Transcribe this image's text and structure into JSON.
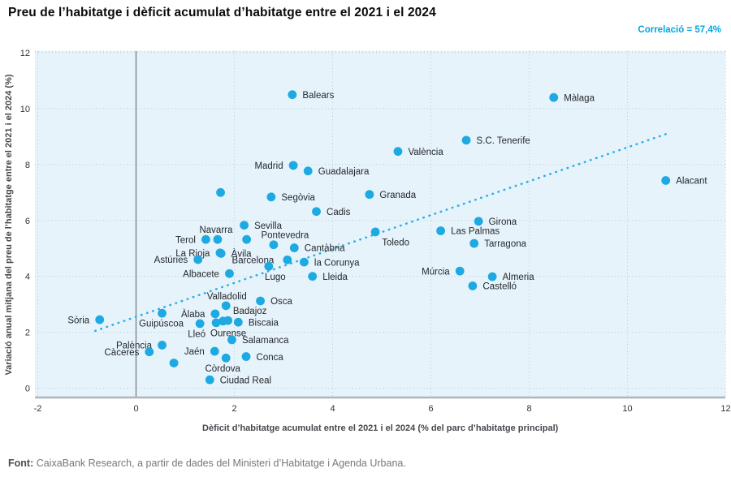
{
  "header": {
    "title": "Preu de l’habitatge i dèficit acumulat d’habitatge entre el 2021 i el 2024",
    "correlation": "Correlació = 57,4%"
  },
  "footer": {
    "source_label": "Font:",
    "source_text": " CaixaBank Research, a partir de dades del Ministeri d’Habitatge i Agenda Urbana."
  },
  "colors": {
    "dot": "#1da9e2",
    "trend": "#2ab1e8",
    "plot_bg": "#e7f3fb",
    "grid": "#b6c9d6",
    "zero_line": "#6b7680",
    "axis_line": "#adb6bc",
    "tick_text": "#2f3337",
    "label_text": "#24282c",
    "axis_title": "#44484c",
    "correlation": "#00a5e0"
  },
  "chart_data": {
    "type": "scatter",
    "title": "Preu de l’habitatge i dèficit acumulat d’habitatge entre el 2021 i el 2024",
    "xlabel": "Dèficit d’habitatge acumulat entre el 2021 i el 2024 (% del parc d’habitatge principal)",
    "ylabel": "Variació anual mitjana del preu de l’habitatge entre el 2021 i el 2024 (%)",
    "xlim": [
      -2.06,
      12.0
    ],
    "ylim": [
      -0.33,
      12.06
    ],
    "x_ticks": [
      -2,
      0,
      2,
      4,
      6,
      8,
      10,
      12
    ],
    "y_ticks": [
      0,
      2,
      4,
      6,
      8,
      10,
      12
    ],
    "grid": true,
    "correlation_pct": "57,4%",
    "trend": {
      "x1": -0.83,
      "y1": 2.05,
      "x2": 10.8,
      "y2": 9.1
    },
    "points": [
      {
        "name": "Balears",
        "x": 3.18,
        "y": 10.5,
        "label_pos": "right",
        "label_dx": 0
      },
      {
        "name": "Màlaga",
        "x": 8.5,
        "y": 10.4,
        "label_pos": "right",
        "label_dx": 0
      },
      {
        "name": "S.C. Tenerife",
        "x": 6.72,
        "y": 8.87,
        "label_pos": "right",
        "label_dx": 0
      },
      {
        "name": "València",
        "x": 5.33,
        "y": 8.47,
        "label_pos": "right",
        "label_dx": 0
      },
      {
        "name": "Madrid",
        "x": 3.2,
        "y": 7.97,
        "label_pos": "left",
        "label_dx": 0
      },
      {
        "name": "Guadalajara",
        "x": 3.5,
        "y": 7.77,
        "label_pos": "right",
        "label_dx": 0
      },
      {
        "name": "Alacant",
        "x": 10.78,
        "y": 7.43,
        "label_pos": "right",
        "label_dx": 0
      },
      {
        "name": "",
        "x": 1.72,
        "y": 7.0,
        "label_pos": null,
        "label_dx": 0
      },
      {
        "name": "Granada",
        "x": 4.75,
        "y": 6.93,
        "label_pos": "right",
        "label_dx": 0
      },
      {
        "name": "Segòvia",
        "x": 2.75,
        "y": 6.84,
        "label_pos": "right",
        "label_dx": 0
      },
      {
        "name": "Cadis",
        "x": 3.67,
        "y": 6.32,
        "label_pos": "right",
        "label_dx": 0
      },
      {
        "name": "Girona",
        "x": 6.97,
        "y": 5.97,
        "label_pos": "right",
        "label_dx": 0
      },
      {
        "name": "Sevilla",
        "x": 2.2,
        "y": 5.83,
        "label_pos": "right",
        "label_dx": 0
      },
      {
        "name": "Las Palmas",
        "x": 6.2,
        "y": 5.63,
        "label_pos": "right",
        "label_dx": 0
      },
      {
        "name": "Toledo",
        "x": 4.87,
        "y": 5.59,
        "label_pos": "below",
        "label_dx": 25
      },
      {
        "name": "Terol",
        "x": 1.42,
        "y": 5.32,
        "label_pos": "left",
        "label_dx": 0
      },
      {
        "name": "Navarra",
        "x": 1.66,
        "y": 5.32,
        "label_pos": "above",
        "label_dx": -2
      },
      {
        "name": "",
        "x": 2.25,
        "y": 5.32,
        "label_pos": null,
        "label_dx": 0
      },
      {
        "name": "Pontevedra",
        "x": 2.8,
        "y": 5.13,
        "label_pos": "above",
        "label_dx": 14
      },
      {
        "name": "Cantàbria",
        "x": 3.22,
        "y": 5.02,
        "label_pos": "right",
        "label_dx": 0
      },
      {
        "name": "Tarragona",
        "x": 6.88,
        "y": 5.18,
        "label_pos": "right",
        "label_dx": 0
      },
      {
        "name": "La Rioja",
        "x": 1.71,
        "y": 4.84,
        "label_pos": "left",
        "label_dx": 0
      },
      {
        "name": "Àvila",
        "x": 1.73,
        "y": 4.82,
        "label_pos": "right",
        "label_dx": 0
      },
      {
        "name": "Astúries",
        "x": 1.26,
        "y": 4.6,
        "label_pos": "left",
        "label_dx": 0
      },
      {
        "name": "Barcelona",
        "x": 3.08,
        "y": 4.59,
        "label_pos": "left",
        "label_dx": -4
      },
      {
        "name": "la Corunya",
        "x": 3.42,
        "y": 4.51,
        "label_pos": "right",
        "label_dx": 0
      },
      {
        "name": "Lugo",
        "x": 2.7,
        "y": 4.36,
        "label_pos": "below",
        "label_dx": 8
      },
      {
        "name": "Albacete",
        "x": 1.9,
        "y": 4.1,
        "label_pos": "left",
        "label_dx": 0
      },
      {
        "name": "Lleida",
        "x": 3.59,
        "y": 4.0,
        "label_pos": "right",
        "label_dx": 0
      },
      {
        "name": "Múrcia",
        "x": 6.59,
        "y": 4.19,
        "label_pos": "left",
        "label_dx": 0
      },
      {
        "name": "Almeria",
        "x": 7.25,
        "y": 3.99,
        "label_pos": "right",
        "label_dx": 0
      },
      {
        "name": "Castelló",
        "x": 6.85,
        "y": 3.66,
        "label_pos": "right",
        "label_dx": 0
      },
      {
        "name": "Valladolid",
        "x": 1.83,
        "y": 2.95,
        "label_pos": "above",
        "label_dx": 1
      },
      {
        "name": "Osca",
        "x": 2.53,
        "y": 3.12,
        "label_pos": "right",
        "label_dx": 0
      },
      {
        "name": "Àlaba",
        "x": 1.61,
        "y": 2.66,
        "label_pos": "left",
        "label_dx": 0
      },
      {
        "name": "Sòria",
        "x": -0.74,
        "y": 2.45,
        "label_pos": "left",
        "label_dx": 0
      },
      {
        "name": "Guipúscoa",
        "x": 0.53,
        "y": 2.68,
        "label_pos": "below",
        "label_dx": -1
      },
      {
        "name": "Badajoz",
        "x": 1.87,
        "y": 2.42,
        "label_pos": "above",
        "label_dx": 27
      },
      {
        "name": "",
        "x": 1.77,
        "y": 2.4,
        "label_pos": null,
        "label_dx": 0
      },
      {
        "name": "Biscaia",
        "x": 2.08,
        "y": 2.36,
        "label_pos": "right",
        "label_dx": 0
      },
      {
        "name": "Lleó",
        "x": 1.3,
        "y": 2.31,
        "label_pos": "below",
        "label_dx": -4
      },
      {
        "name": "Ourense",
        "x": 1.63,
        "y": 2.34,
        "label_pos": "below",
        "label_dx": 15
      },
      {
        "name": "Palència",
        "x": 0.53,
        "y": 1.54,
        "label_pos": "left",
        "label_dx": 0
      },
      {
        "name": "Salamanca",
        "x": 1.95,
        "y": 1.73,
        "label_pos": "right",
        "label_dx": 0
      },
      {
        "name": "Càceres",
        "x": 0.27,
        "y": 1.3,
        "label_pos": "left",
        "label_dx": 0
      },
      {
        "name": "Jaén",
        "x": 1.6,
        "y": 1.32,
        "label_pos": "left",
        "label_dx": 0
      },
      {
        "name": "Conca",
        "x": 2.24,
        "y": 1.13,
        "label_pos": "right",
        "label_dx": 0
      },
      {
        "name": "Còrdova",
        "x": 1.83,
        "y": 1.08,
        "label_pos": "below",
        "label_dx": -4
      },
      {
        "name": "",
        "x": 0.77,
        "y": 0.9,
        "label_pos": null,
        "label_dx": 0
      },
      {
        "name": "Ciudad Real",
        "x": 1.5,
        "y": 0.3,
        "label_pos": "right",
        "label_dx": 0
      }
    ]
  }
}
